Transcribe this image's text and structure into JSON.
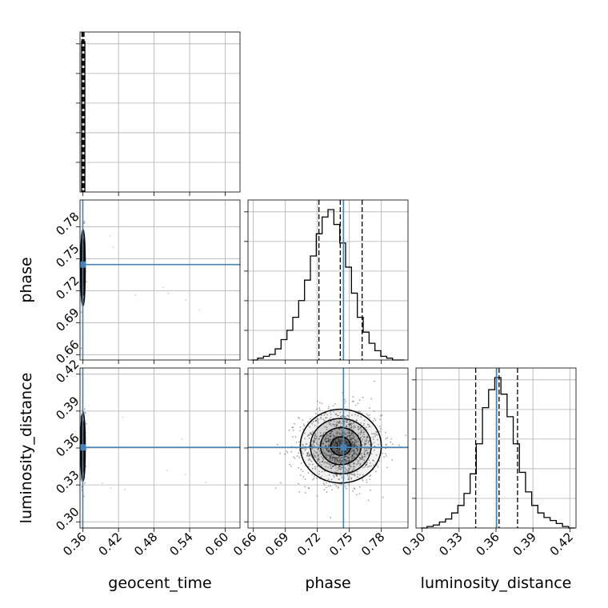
{
  "chart_data": {
    "type": "corner",
    "parameters": [
      "geocent_time",
      "phase",
      "luminosity_distance"
    ],
    "grid": true,
    "truth_color": "#4682b4",
    "hist_color": "#000000",
    "axes": {
      "geocent_time": {
        "label": "geocent_time",
        "range": [
          0.355,
          0.625
        ],
        "ticks": [
          0.36,
          0.42,
          0.48,
          0.54,
          0.6
        ],
        "tick_labels": [
          "0.36",
          "0.42",
          "0.48",
          "0.54",
          "0.60"
        ]
      },
      "phase": {
        "label": "phase",
        "range": [
          0.655,
          0.805
        ],
        "ticks": [
          0.66,
          0.69,
          0.72,
          0.75,
          0.78
        ],
        "tick_labels": [
          "0.66",
          "0.69",
          "0.72",
          "0.75",
          "0.78"
        ]
      },
      "luminosity_distance": {
        "label": "luminosity_distance",
        "range": [
          0.295,
          0.425
        ],
        "ticks": [
          0.3,
          0.33,
          0.36,
          0.39,
          0.42
        ],
        "tick_labels": [
          "0.30",
          "0.33",
          "0.36",
          "0.39",
          "0.42"
        ]
      }
    },
    "truths": {
      "geocent_time": 0.3597,
      "phase": 0.7445,
      "luminosity_distance": 0.3605
    },
    "quantiles": {
      "geocent_time": [
        0.3582,
        0.36,
        0.3618
      ],
      "phase": [
        0.7215,
        0.7415,
        0.762
      ],
      "luminosity_distance": [
        0.3435,
        0.3625,
        0.3775
      ]
    },
    "histograms": {
      "geocent_time": {
        "edges": [
          0.3576,
          0.3604,
          0.3632
        ],
        "counts": [
          100,
          100
        ]
      },
      "phase": {
        "edges": [
          0.6585,
          0.664,
          0.6695,
          0.675,
          0.6805,
          0.686,
          0.6915,
          0.697,
          0.7025,
          0.708,
          0.7135,
          0.719,
          0.7245,
          0.73,
          0.7355,
          0.741,
          0.7465,
          0.752,
          0.7575,
          0.763,
          0.7685,
          0.774,
          0.7795,
          0.785,
          0.7905,
          0.796,
          0.8015
        ],
        "counts": [
          0,
          1,
          2,
          3,
          6,
          11,
          16,
          23,
          32,
          43,
          56,
          68,
          77,
          81,
          73,
          63,
          50,
          36,
          23,
          15,
          9,
          5,
          2,
          1,
          0,
          0
        ]
      },
      "luminosity_distance": {
        "edges": [
          0.299,
          0.304,
          0.309,
          0.314,
          0.319,
          0.324,
          0.329,
          0.334,
          0.339,
          0.344,
          0.349,
          0.354,
          0.359,
          0.364,
          0.369,
          0.374,
          0.379,
          0.384,
          0.389,
          0.394,
          0.399,
          0.404,
          0.409,
          0.414,
          0.419,
          0.424
        ],
        "counts": [
          0,
          1,
          2,
          4,
          6,
          10,
          15,
          23,
          36,
          56,
          80,
          92,
          100,
          89,
          74,
          56,
          37,
          24,
          15,
          10,
          7,
          5,
          3,
          1,
          0
        ]
      }
    },
    "density_2d": {
      "phase_vs_geocent_time": {
        "center": [
          0.36,
          0.7415
        ],
        "sd": [
          0.001,
          0.018
        ],
        "rho": 0
      },
      "luminosity_distance_vs_geocent_time": {
        "center": [
          0.36,
          0.361
        ],
        "sd": [
          0.001,
          0.014
        ],
        "rho": 0
      },
      "luminosity_distance_vs_phase": {
        "center": [
          0.742,
          0.3615
        ],
        "sd": [
          0.019,
          0.015
        ],
        "rho": 0.05
      }
    }
  }
}
